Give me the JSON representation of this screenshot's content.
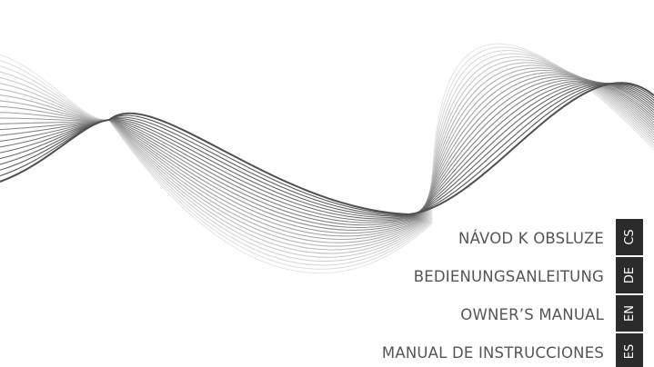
{
  "languages": [
    {
      "title": "NÁVOD K OBSLUZE",
      "code": "CS"
    },
    {
      "title": "BEDIENUNGSANLEITUNG",
      "code": "DE"
    },
    {
      "title": "OWNER’S MANUAL",
      "code": "EN"
    },
    {
      "title": "MANUAL DE INSTRUCCIONES",
      "code": "ES"
    }
  ]
}
